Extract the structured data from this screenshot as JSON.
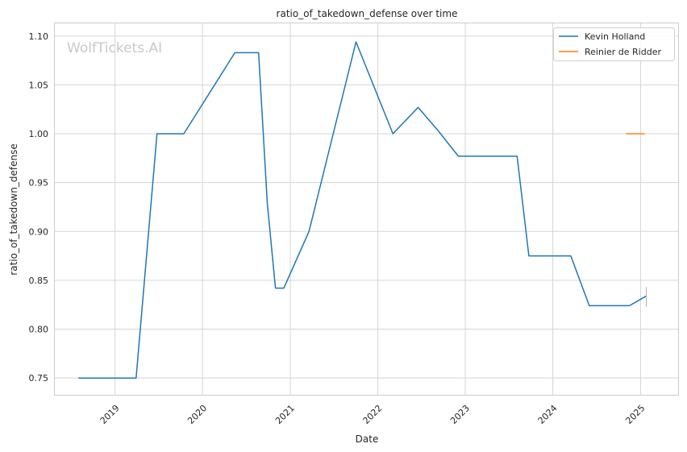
{
  "chart_data": {
    "type": "line",
    "title": "ratio_of_takedown_defense over time",
    "xlabel": "Date",
    "ylabel": "ratio_of_takedown_defense",
    "watermark": "WolfTickets.AI",
    "grid": true,
    "legend_position": "top-right",
    "xlim": [
      "2018-04-25",
      "2025-06-10"
    ],
    "ylim": [
      0.732,
      1.113
    ],
    "x_ticks": [
      "2019-01-01",
      "2020-01-01",
      "2021-01-01",
      "2022-01-01",
      "2023-01-01",
      "2024-01-01",
      "2025-01-01"
    ],
    "x_tick_labels": [
      "2019",
      "2020",
      "2021",
      "2022",
      "2023",
      "2024",
      "2025"
    ],
    "y_ticks": [
      0.75,
      0.8,
      0.85,
      0.9,
      0.95,
      1.0,
      1.05,
      1.1
    ],
    "y_tick_labels": [
      "0.75",
      "0.80",
      "0.85",
      "0.90",
      "0.95",
      "1.00",
      "1.05",
      "1.10"
    ],
    "series": [
      {
        "name": "Kevin Holland",
        "color": "#1f77b4",
        "points": [
          {
            "x": "2018-08-01",
            "y": 0.75
          },
          {
            "x": "2019-03-30",
            "y": 0.75
          },
          {
            "x": "2019-06-25",
            "y": 1.0
          },
          {
            "x": "2019-10-15",
            "y": 1.0
          },
          {
            "x": "2020-05-15",
            "y": 1.083
          },
          {
            "x": "2020-08-22",
            "y": 1.083
          },
          {
            "x": "2020-09-27",
            "y": 0.929
          },
          {
            "x": "2020-10-31",
            "y": 0.842
          },
          {
            "x": "2020-12-05",
            "y": 0.842
          },
          {
            "x": "2021-03-20",
            "y": 0.9
          },
          {
            "x": "2021-10-02",
            "y": 1.094
          },
          {
            "x": "2022-03-05",
            "y": 1.0
          },
          {
            "x": "2022-06-18",
            "y": 1.027
          },
          {
            "x": "2022-09-10",
            "y": 1.003
          },
          {
            "x": "2022-12-03",
            "y": 0.977
          },
          {
            "x": "2023-08-05",
            "y": 0.977
          },
          {
            "x": "2023-09-23",
            "y": 0.875
          },
          {
            "x": "2024-03-16",
            "y": 0.875
          },
          {
            "x": "2024-06-01",
            "y": 0.824
          },
          {
            "x": "2024-11-16",
            "y": 0.824
          },
          {
            "x": "2025-01-25",
            "y": 0.834
          }
        ]
      },
      {
        "name": "Reinier de Ridder",
        "color": "#ff7f0e",
        "points": [
          {
            "x": "2024-11-02",
            "y": 1.0
          },
          {
            "x": "2025-01-18",
            "y": 1.0
          }
        ]
      }
    ]
  }
}
